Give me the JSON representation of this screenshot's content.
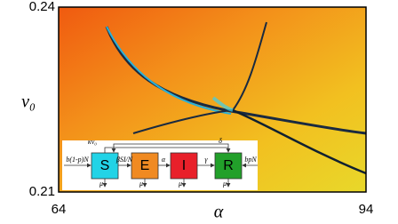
{
  "chart_data": {
    "type": "heatmap",
    "xlabel": "α",
    "ylabel": "v₀",
    "xlim": [
      64,
      94
    ],
    "ylim": [
      0.21,
      0.24
    ],
    "xticks": [
      64,
      94
    ],
    "yticks": [
      0.21,
      0.24
    ]
  },
  "inset": {
    "nodes": [
      {
        "label": "S",
        "color": "#22d3e6"
      },
      {
        "label": "E",
        "color": "#f08a22"
      },
      {
        "label": "I",
        "color": "#e8202a"
      },
      {
        "label": "R",
        "color": "#22a02a"
      }
    ],
    "edges": {
      "birth_in": "b(1-p)N",
      "vaccination": "κv₀",
      "infection": "βSI/N",
      "incubation": "α",
      "recovery": "γ",
      "waning": "δ",
      "birth_immune": "bpN"
    },
    "death": [
      "μ",
      "μ",
      "μ",
      "μ"
    ]
  }
}
